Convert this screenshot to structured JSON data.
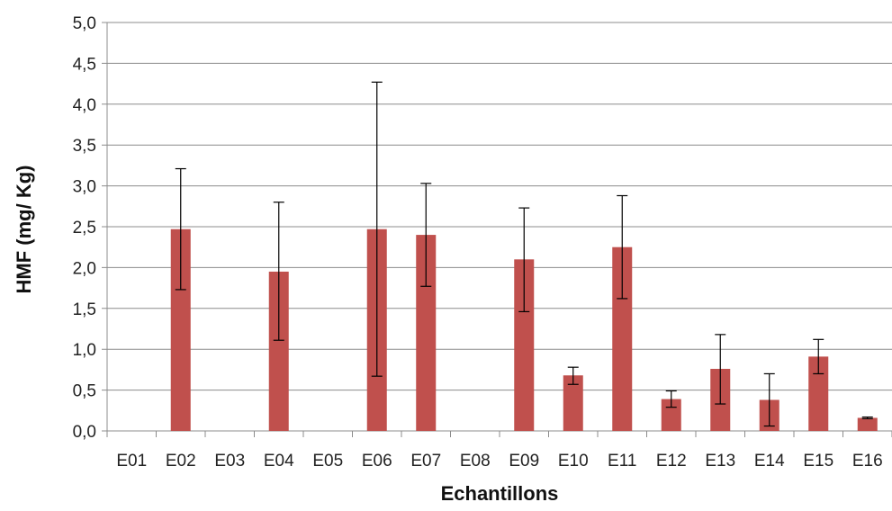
{
  "chart_data": {
    "type": "bar",
    "xlabel": "Echantillons",
    "ylabel": "HMF (mg/ Kg)",
    "ylim": [
      0,
      5
    ],
    "ytick_step": 0.5,
    "yticks": [
      "0,0",
      "0,5",
      "1,0",
      "1,5",
      "2,0",
      "2,5",
      "3,0",
      "3,5",
      "4,0",
      "4,5",
      "5,0"
    ],
    "grid": true,
    "bar_color": "#c0504d",
    "categories": [
      "E01",
      "E02",
      "E03",
      "E04",
      "E05",
      "E06",
      "E07",
      "E08",
      "E09",
      "E10",
      "E11",
      "E12",
      "E13",
      "E14",
      "E15",
      "E16"
    ],
    "values": [
      0,
      2.47,
      0,
      1.95,
      0,
      2.47,
      2.4,
      0,
      2.1,
      0.68,
      2.25,
      0.39,
      0.76,
      0.38,
      0.91,
      0.16
    ],
    "error_low": [
      null,
      1.73,
      null,
      1.11,
      null,
      0.67,
      1.77,
      null,
      1.46,
      0.57,
      1.62,
      0.29,
      0.33,
      0.06,
      0.7,
      0.15
    ],
    "error_high": [
      null,
      3.21,
      null,
      2.8,
      null,
      4.27,
      3.03,
      null,
      2.73,
      0.78,
      2.88,
      0.49,
      1.18,
      0.7,
      1.12,
      0.17
    ]
  }
}
